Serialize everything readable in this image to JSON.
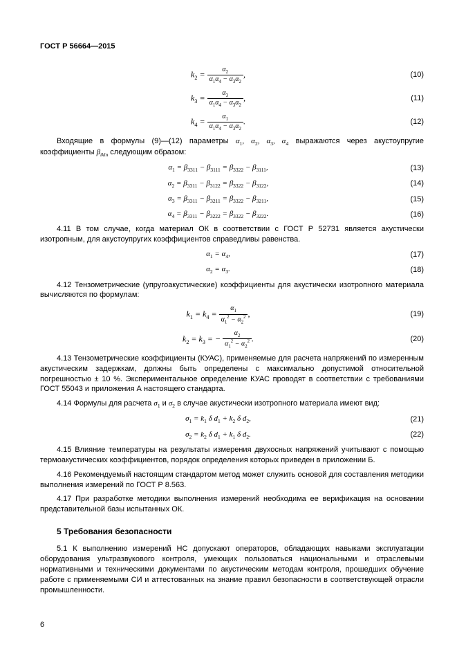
{
  "header": "ГОСТ Р 56664—2015",
  "page_number": "6",
  "eq10": {
    "lhs": "k₂",
    "num": "α₂",
    "den": "α₁α₄ − α₃α₂",
    "num_label": "(10)"
  },
  "eq11": {
    "lhs": "k₃",
    "num": "α₃",
    "den": "α₁α₄ − α₃α₂",
    "num_label": "(11)"
  },
  "eq12": {
    "lhs": "k₄",
    "num": "α₁",
    "den": "α₁α₄ − α₃α₂",
    "num_label": "(12)"
  },
  "p1a": "Входящие в формулы (9)—(12) параметры ",
  "p1_params": "α₁, α₂, α₃, α₄",
  "p1b": " выражаются через акустоупругие коэффициенты ",
  "p1_beta": "β",
  "p1_sub": "ikln",
  "p1c": " следующим образом:",
  "eq13": {
    "body": "α₁ = β₃₃₁₁ − β₃₁₁₁ = β₃₃₂₂ − β₃₁₁₁,",
    "num_label": "(13)"
  },
  "eq14": {
    "body": "α₂ = β₃₃₁₁ − β₃₁₂₂ = β₃₃₂₂ − β₃₁₂₂,",
    "num_label": "(14)"
  },
  "eq15": {
    "body": "α₃ = β₃₃₁₁ − β₃₂₁₁ = β₃₃₂₂ − β₃₂₁₁,",
    "num_label": "(15)"
  },
  "eq16": {
    "body": "α₄ = β₃₃₁₁ − β₃₂₂₂ = β₃₃₂₂ − β₃₂₂₂.",
    "num_label": "(16)"
  },
  "p411": "4.11 В том случае, когда материал ОК в соответствии с ГОСТ Р 52731 является акустически изотропным, для акустоупругих коэффициентов справедливы равенства.",
  "eq17": {
    "body": "α₁ = α₄,",
    "num_label": "(17)"
  },
  "eq18": {
    "body": "α₂ = α₃.",
    "num_label": "(18)"
  },
  "p412": "4.12 Тензометрические (упругоакустические) коэффициенты для акустически изотропного материала вычисляются по формулам:",
  "eq19": {
    "lhs": "k₁ = k₄ =",
    "num": "α₁",
    "den": "α₁² − α₂²",
    "tail": ",",
    "num_label": "(19)"
  },
  "eq20": {
    "lhs": "k₂ = k₃ = −",
    "num": "α₂",
    "den": "α₁² − α₂²",
    "tail": ".",
    "num_label": "(20)"
  },
  "p413": "4.13 Тензометрические коэффициенты (КУАС), применяемые для расчета напряжений по измеренным акустическим задержкам, должны быть определены с максимально допустимой относительной погрешностью ± 10 %. Экспериментальное определение КУАС проводят в соответствии с требованиями ГОСТ 55043 и приложения А настоящего стандарта.",
  "p414a": "4.14 Формулы для расчета ",
  "p414_s1": "σ₁",
  "p414_mid": " и ",
  "p414_s2": "σ₂",
  "p414b": " в случае акустически изотропного материала имеют вид:",
  "eq21": {
    "body": "σ₁ = k₁ δ d₁ + k₂ δ d₂,",
    "num_label": "(21)"
  },
  "eq22": {
    "body": "σ₂ = k₂ δ d₁ + k₁ δ d₂.",
    "num_label": "(22)"
  },
  "p415": "4.15 Влияние температуры на результаты измерения двухосных напряжений учитывают с помощью термоакустических коэффициентов, порядок определения которых приведен в приложении Б.",
  "p416": "4.16 Рекомендуемый настоящим стандартом метод может служить основой для составления методики выполнения измерений по ГОСТ Р 8.563.",
  "p417": "4.17 При разработке методики выполнения измерений необходима ее верификация на основании представительной базы испытанных ОК.",
  "section5": "5  Требования безопасности",
  "p51": "5.1 К выполнению измерений НС допускают операторов, обладающих навыками эксплуатации оборудования ультразвукового контроля, умеющих пользоваться национальными и отраслевыми нормативными и техническими документами по акустическим методам контроля, прошедших обучение работе с применяемыми СИ и аттестованных на знание правил безопасности в соответствующей отрасли промышленности."
}
